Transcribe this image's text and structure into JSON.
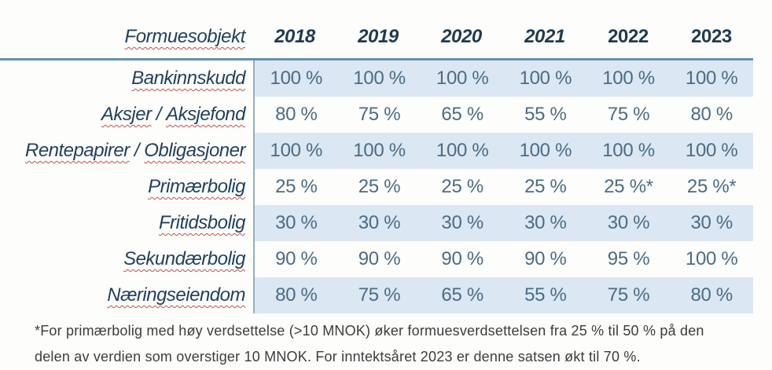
{
  "table": {
    "header_label": "Formuesobjekt",
    "years": [
      "2018",
      "2019",
      "2020",
      "2021",
      "2022",
      "2023"
    ],
    "rows": [
      {
        "label": "Bankinnskudd",
        "values": [
          "100 %",
          "100 %",
          "100 %",
          "100 %",
          "100 %",
          "100 %"
        ]
      },
      {
        "label": "Aksjer / Aksjefond",
        "values": [
          "80 %",
          "75 %",
          "65 %",
          "55 %",
          "75 %",
          "80 %"
        ]
      },
      {
        "label": "Rentepapirer / Obligasjoner",
        "values": [
          "100 %",
          "100 %",
          "100 %",
          "100 %",
          "100 %",
          "100 %"
        ]
      },
      {
        "label": "Primærbolig",
        "values": [
          "25 %",
          "25 %",
          "25 %",
          "25 %",
          "25 %*",
          "25 %*"
        ]
      },
      {
        "label": "Fritidsbolig",
        "values": [
          "30 %",
          "30 %",
          "30 %",
          "30 %",
          "30 %",
          "30 %"
        ]
      },
      {
        "label": "Sekundærbolig",
        "values": [
          "90 %",
          "90 %",
          "90 %",
          "90 %",
          "95 %",
          "100 %"
        ]
      },
      {
        "label": "Næringseiendom",
        "values": [
          "80 %",
          "75 %",
          "65 %",
          "55 %",
          "75 %",
          "80 %"
        ]
      }
    ]
  },
  "footnote": {
    "line1": "*For primærbolig med høy verdsettelse (>10 MNOK) øker formuesverdsettelsen fra 25 % til 50 % på den",
    "line2": "delen av verdien som overstiger 10 MNOK. For inntektsåret 2023 er denne satsen økt til 70 %."
  },
  "colors": {
    "stripe_blue": "#dbe7f3",
    "divider_line": "#6690ae",
    "vertical_line": "#8fafc5",
    "value_text": "#4a6c84",
    "heading_text": "#1f3a52",
    "label_text": "#21415d",
    "squiggle_red": "#c05048",
    "footnote_text": "#3c3c3c"
  }
}
